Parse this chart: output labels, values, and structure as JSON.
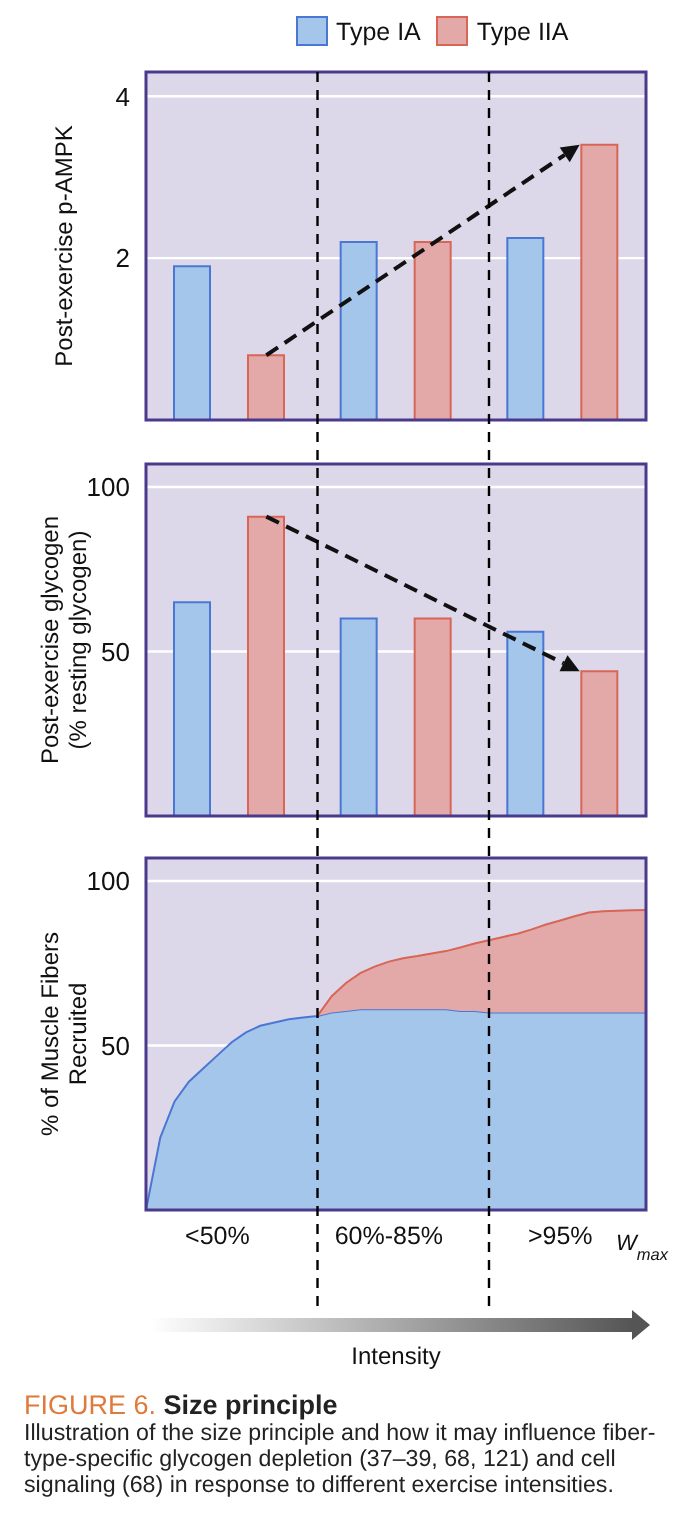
{
  "chart_data": [
    {
      "type": "bar",
      "ylabel": "Post-exercise p-AMPK",
      "categories": [
        null,
        null,
        null
      ],
      "series": [
        {
          "name": "Type IA",
          "color": "#a4c6ea",
          "values": [
            1.9,
            2.2,
            2.25
          ]
        },
        {
          "name": "Type IIA",
          "color": "#e3a9a9",
          "values": [
            0.8,
            2.2,
            3.4
          ]
        }
      ],
      "ylim": [
        0,
        4.3
      ],
      "yticks": [
        2,
        4
      ],
      "grid": "y",
      "legend": "top",
      "tick_labels": "y"
    },
    {
      "type": "bar",
      "ylabel": "Post-exercise glycogen (% resting glycogen)",
      "categories": [
        null,
        null,
        null
      ],
      "series": [
        {
          "color": "#a4c6ea",
          "values": [
            65,
            60,
            56
          ]
        },
        {
          "color": "#e3a9a9",
          "values": [
            91,
            60,
            44
          ]
        }
      ],
      "ylim": [
        0,
        107
      ],
      "yticks": [
        50,
        100
      ],
      "grid": "y",
      "tick_labels": "y"
    },
    {
      "type": "area",
      "stacked": true,
      "xlabel": "Intensity",
      "ylabel": "% of Muscle Fibers Recruited",
      "categories": [
        null,
        null,
        null,
        null,
        null,
        "<50%",
        null,
        null,
        null,
        null,
        null,
        null,
        null,
        null,
        null,
        null,
        null,
        "60%-85%",
        null,
        null,
        null,
        null,
        null,
        null,
        null,
        null,
        null,
        null,
        null,
        ">95%",
        null,
        null,
        null,
        null,
        null,
        null
      ],
      "series": [
        {
          "color": "#a4c6ea",
          "values": [
            0,
            22,
            33,
            39,
            43,
            47,
            51,
            54,
            56,
            57,
            58,
            58.5,
            59,
            60,
            60.5,
            61,
            61,
            61,
            61,
            61,
            61,
            61,
            60.5,
            60.5,
            60,
            60,
            60,
            60,
            60,
            60,
            60,
            60,
            60,
            60,
            60,
            60
          ]
        },
        {
          "color": "#e3a9a9",
          "values": [
            null,
            null,
            null,
            null,
            null,
            null,
            null,
            null,
            null,
            null,
            null,
            null,
            0,
            5,
            8.5,
            11,
            13,
            14.5,
            15.5,
            16.2,
            17,
            17.7,
            19.3,
            20.5,
            22,
            23,
            24,
            25.3,
            26.8,
            28,
            29.3,
            30.4,
            30.8,
            31,
            31.1,
            31.2
          ]
        }
      ],
      "ylim": [
        0,
        107
      ],
      "yticks": [
        50,
        100
      ],
      "grid": "y",
      "annotations": [
        "W$_{max}$",
        "FIGURE 6. Size principle",
        "Illustration of the size principle and how it may influence fiber-type-specific glycogen depletion (37–39, 68, 121) and cell signaling (68) in response to different exercise intensities."
      ]
    }
  ]
}
